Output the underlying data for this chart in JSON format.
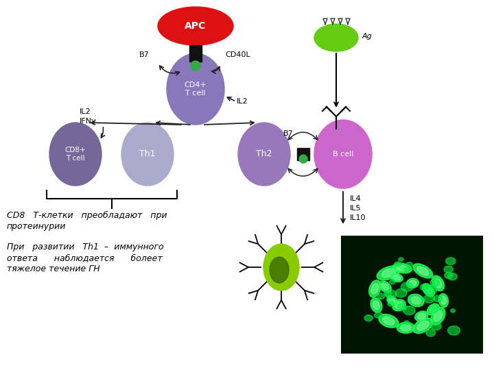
{
  "bg_color": "#ffffff",
  "apc_color": "#dd1111",
  "cd4_color": "#8877bb",
  "cd8_color": "#776699",
  "th1_color": "#aaaacc",
  "th2_color": "#9977bb",
  "bcell_color": "#cc66cc",
  "ag_color": "#66cc11",
  "conn_color": "#111111",
  "green_dot_color": "#33aa33",
  "arrow_color": "#222222",
  "text_color": "#000000",
  "text1_line1": "CD8   Т-клетки   преобладают   при",
  "text1_line2": "протеинурии",
  "text2_line1": "При   развитии   Th1  –  иммунного",
  "text2_line2": "ответа      наблюдается      болеет",
  "text2_line3": "тяжелое течение ГН",
  "text_fontsize": 9
}
